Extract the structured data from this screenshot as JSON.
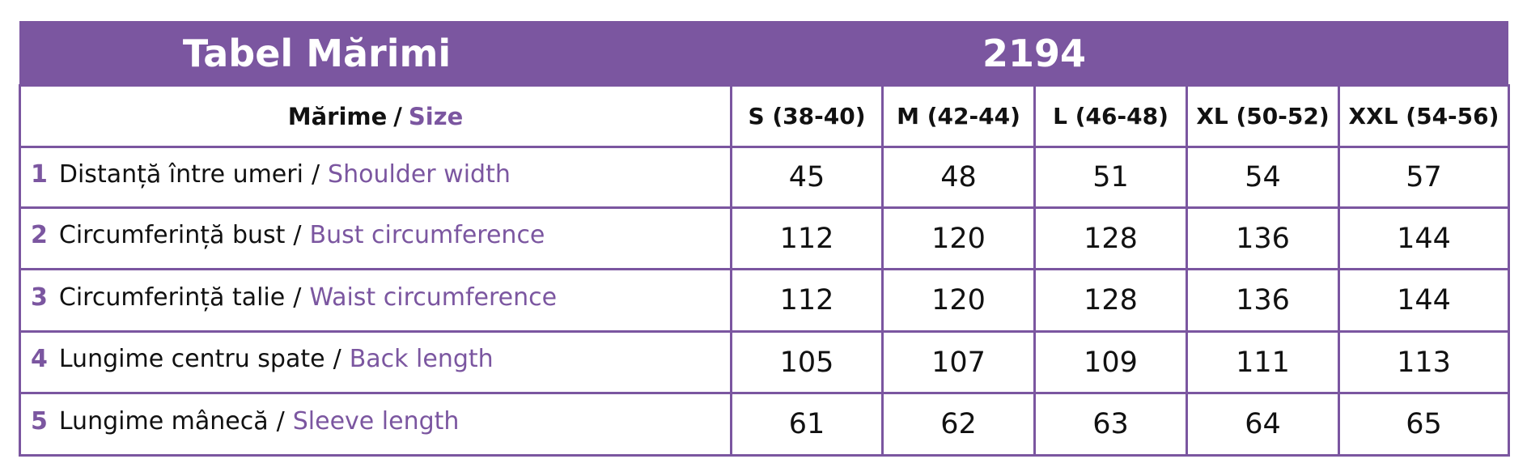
{
  "header": {
    "title": "Tabel Mărimi",
    "code": "2194"
  },
  "table": {
    "separator": "/",
    "size_label": {
      "ro": "Mărime",
      "en": "Size"
    },
    "sizes": [
      "S (38-40)",
      "M (42-44)",
      "L (46-48)",
      "XL (50-52)",
      "XXL (54-56)"
    ],
    "rows": [
      {
        "num": "1",
        "ro": "Distanță între umeri",
        "en": "Shoulder width",
        "values": [
          45,
          48,
          51,
          54,
          57
        ]
      },
      {
        "num": "2",
        "ro": "Circumferință bust",
        "en": "Bust circumference",
        "values": [
          112,
          120,
          128,
          136,
          144
        ]
      },
      {
        "num": "3",
        "ro": "Circumferință talie",
        "en": "Waist circumference",
        "values": [
          112,
          120,
          128,
          136,
          144
        ]
      },
      {
        "num": "4",
        "ro": "Lungime centru spate",
        "en": "Back length",
        "values": [
          105,
          107,
          109,
          111,
          113
        ]
      },
      {
        "num": "5",
        "ro": "Lungime mânecă",
        "en": "Sleeve length",
        "values": [
          61,
          62,
          63,
          64,
          65
        ]
      }
    ]
  }
}
